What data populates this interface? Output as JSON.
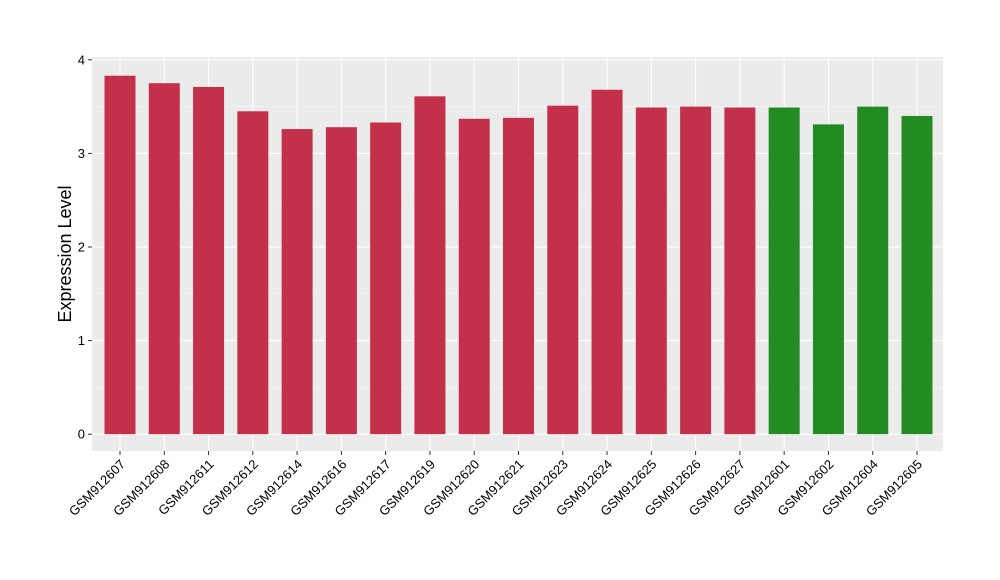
{
  "chart_data": {
    "type": "bar",
    "ylabel": "Expression Level",
    "xlabel": "",
    "ylim": [
      -0.18,
      4.03
    ],
    "yticks": [
      0,
      1,
      2,
      3,
      4
    ],
    "grid": true,
    "legend": "none",
    "background_color": "#ebebeb",
    "categories": [
      "GSM912607",
      "GSM912608",
      "GSM912611",
      "GSM912612",
      "GSM912614",
      "GSM912616",
      "GSM912617",
      "GSM912619",
      "GSM912620",
      "GSM912621",
      "GSM912623",
      "GSM912624",
      "GSM912625",
      "GSM912626",
      "GSM912627",
      "GSM912601",
      "GSM912602",
      "GSM912604",
      "GSM912605"
    ],
    "values": [
      3.83,
      3.75,
      3.71,
      3.45,
      3.26,
      3.28,
      3.33,
      3.61,
      3.37,
      3.38,
      3.51,
      3.68,
      3.49,
      3.5,
      3.49,
      3.49,
      3.31,
      3.5,
      3.4
    ],
    "bar_colors": [
      "#c3304a",
      "#c3304a",
      "#c3304a",
      "#c3304a",
      "#c3304a",
      "#c3304a",
      "#c3304a",
      "#c3304a",
      "#c3304a",
      "#c3304a",
      "#c3304a",
      "#c3304a",
      "#c3304a",
      "#c3304a",
      "#c3304a",
      "#228b22",
      "#228b22",
      "#228b22",
      "#228b22"
    ]
  }
}
